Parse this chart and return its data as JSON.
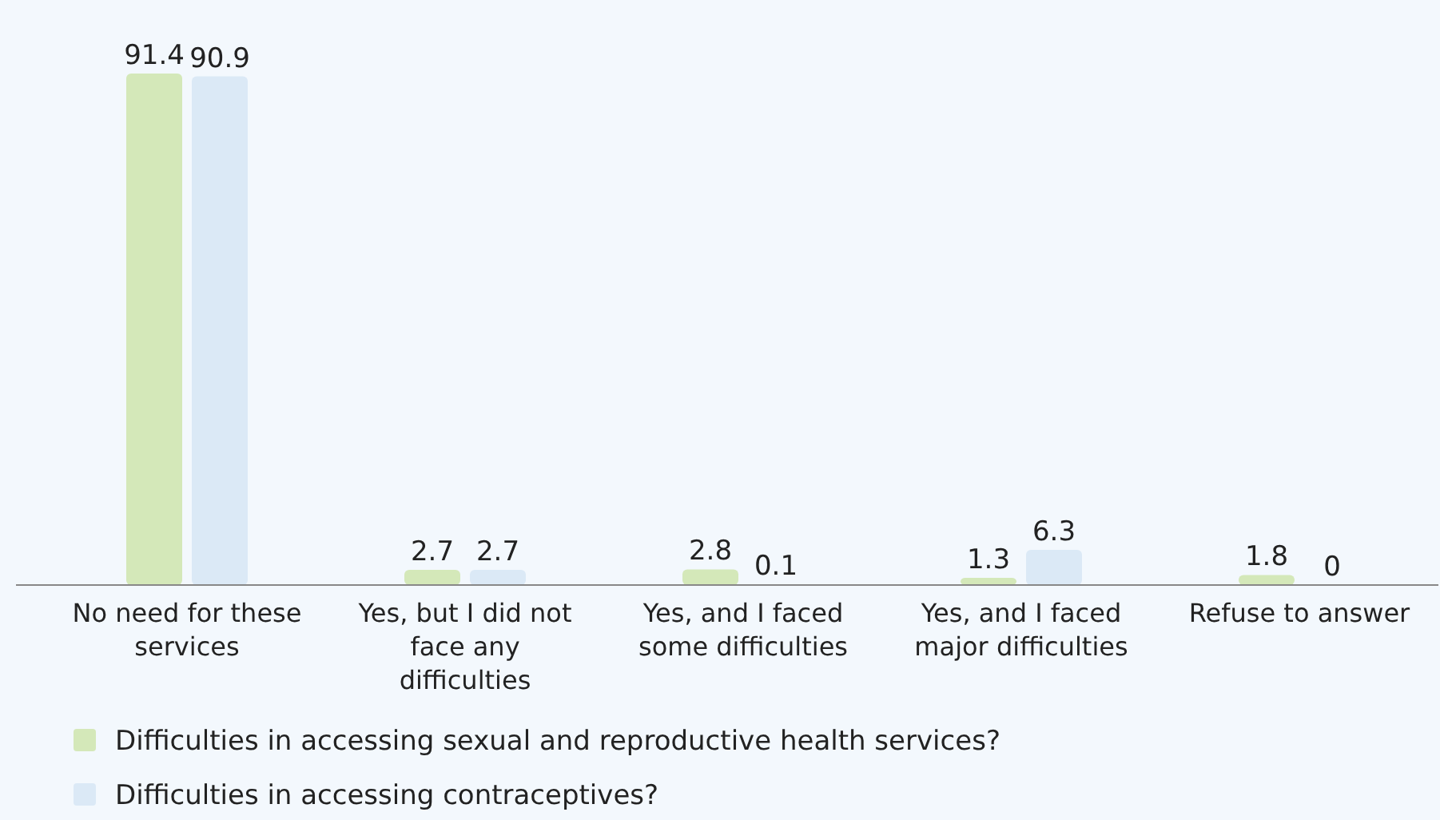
{
  "chart_data": {
    "type": "bar",
    "categories": [
      "No need for these services",
      "Yes, but I did not face any difficulties",
      "Yes, and I faced some difficulties",
      "Yes, and I faced major difficulties",
      "Refuse to answer"
    ],
    "series": [
      {
        "name": "Difficulties in accessing sexual and reproductive health services?",
        "color": "#d4e8b9",
        "values": [
          91.4,
          2.7,
          2.8,
          1.3,
          1.8
        ]
      },
      {
        "name": "Difficulties in accessing contraceptives?",
        "color": "#dbe9f6",
        "values": [
          90.9,
          2.7,
          0.1,
          6.3,
          0
        ]
      }
    ],
    "data_labels": true,
    "legend": "bottom",
    "grid": false
  }
}
